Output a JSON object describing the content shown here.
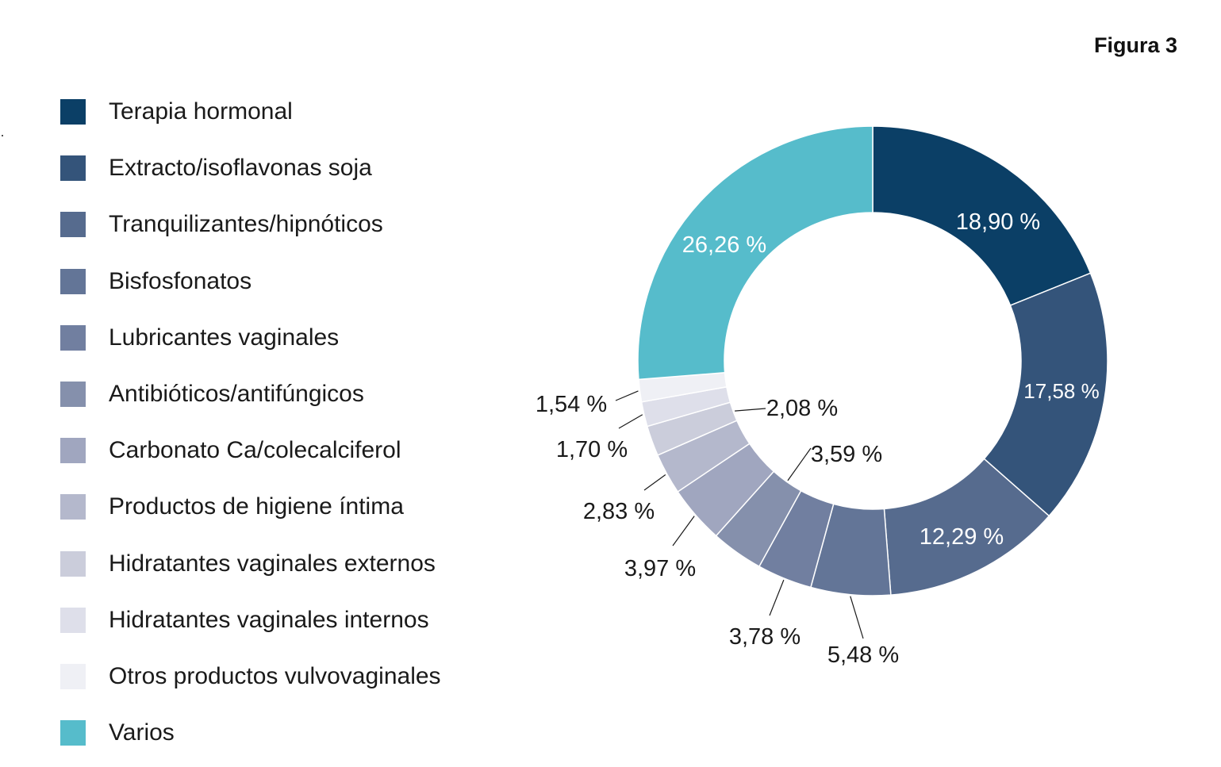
{
  "figure_label": "Figura 3",
  "chart_data": {
    "type": "pie",
    "style": "donut",
    "title": "",
    "unit": "%",
    "categories": [
      "Terapia hormonal",
      "Extracto/isoflavonas soja",
      "Tranquilizantes/hipnóticos",
      "Bisfosfonatos",
      "Lubricantes vaginales",
      "Antibióticos/antifúngicos",
      "Carbonato Ca/colecalciferol",
      "Productos de higiene íntima",
      "Hidratantes vaginales externos",
      "Hidratantes vaginales internos",
      "Otros productos vulvovaginales",
      "Varios"
    ],
    "values": [
      18.9,
      17.58,
      12.29,
      5.48,
      3.78,
      3.59,
      3.97,
      2.83,
      2.08,
      1.7,
      1.54,
      26.26
    ],
    "data_labels": [
      "18,90 %",
      "17,58 %",
      "12,29 %",
      "5,48 %",
      "3,78 %",
      "3,59 %",
      "3,97 %",
      "2,83 %",
      "2,08 %",
      "1,70 %",
      "1,54 %",
      "26,26 %"
    ],
    "colors": [
      "#0b3f66",
      "#34547a",
      "#566b8e",
      "#637597",
      "#717fa0",
      "#8590ac",
      "#a0a6bf",
      "#b4b8cc",
      "#cbcddb",
      "#dedfea",
      "#eff0f5",
      "#56bccb"
    ],
    "legend_position": "left"
  }
}
